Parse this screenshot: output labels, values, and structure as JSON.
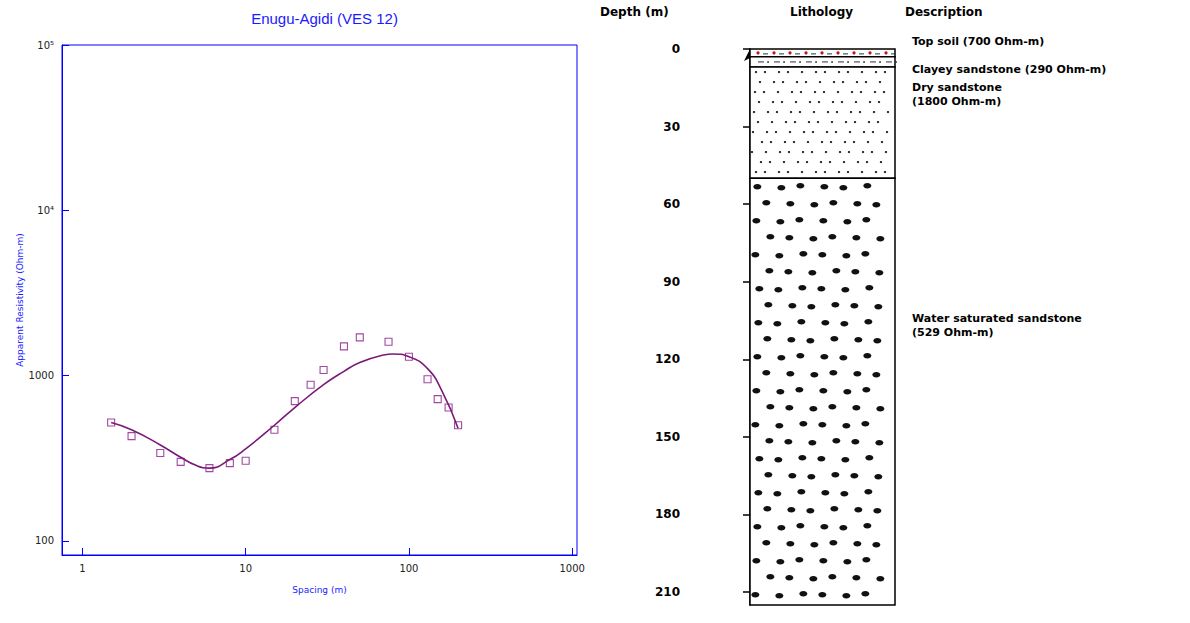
{
  "chart_data": {
    "type": "scatter",
    "title": "Enugu-Agidi (VES 12)",
    "x_label": "Spacing (m)",
    "y_label": "Apparent Resistivity (Ohm-m)",
    "log": true,
    "grid": false,
    "xlim": [
      0.75,
      1070
    ],
    "xticks": [
      1,
      10,
      100,
      1000
    ],
    "ylim": [
      82,
      100000
    ],
    "yticks": [
      100,
      1000,
      {
        "value": 10000,
        "label": "10⁴"
      },
      {
        "value": 100000,
        "label": "10⁵"
      }
    ],
    "series": [
      {
        "type": "scatter",
        "marker": "square",
        "color": "#8b1a89",
        "x": [
          1.5,
          2,
          3,
          4,
          6,
          8,
          10,
          15,
          20,
          25,
          30,
          40,
          50,
          75,
          100,
          130,
          150,
          175,
          200
        ],
        "values": [
          520,
          430,
          340,
          300,
          275,
          295,
          305,
          470,
          700,
          880,
          1080,
          1500,
          1700,
          1600,
          1300,
          950,
          720,
          640,
          500
        ]
      },
      {
        "type": "line",
        "line_style": "solid",
        "color": "#7a1a78",
        "x": [
          1.5,
          2,
          3,
          4,
          5,
          6,
          8,
          10,
          15,
          20,
          30,
          40,
          50,
          70,
          80,
          100,
          130,
          160,
          200
        ],
        "values": [
          520,
          470,
          380,
          320,
          285,
          275,
          310,
          360,
          500,
          640,
          880,
          1060,
          1200,
          1330,
          1350,
          1300,
          1100,
          800,
          480
        ]
      }
    ]
  },
  "lithology": {
    "headers": {
      "depth": "Depth (m)",
      "lithology": "Lithology",
      "description": "Description"
    },
    "ylim": [
      0,
      215
    ],
    "yticks": [
      0,
      30,
      60,
      90,
      120,
      150,
      180,
      210
    ],
    "layers": [
      {
        "top": 0,
        "bottom": 3,
        "description": "Top soil (700 Ohm-m)"
      },
      {
        "top": 3,
        "bottom": 7,
        "description": "Clayey sandstone (290 Ohm-m)"
      },
      {
        "top": 7,
        "bottom": 50,
        "description": "Dry sandstone (1800 Ohm-m)"
      },
      {
        "top": 50,
        "bottom": 215,
        "description": "Water saturated sandstone (529 Ohm-m)"
      }
    ]
  }
}
